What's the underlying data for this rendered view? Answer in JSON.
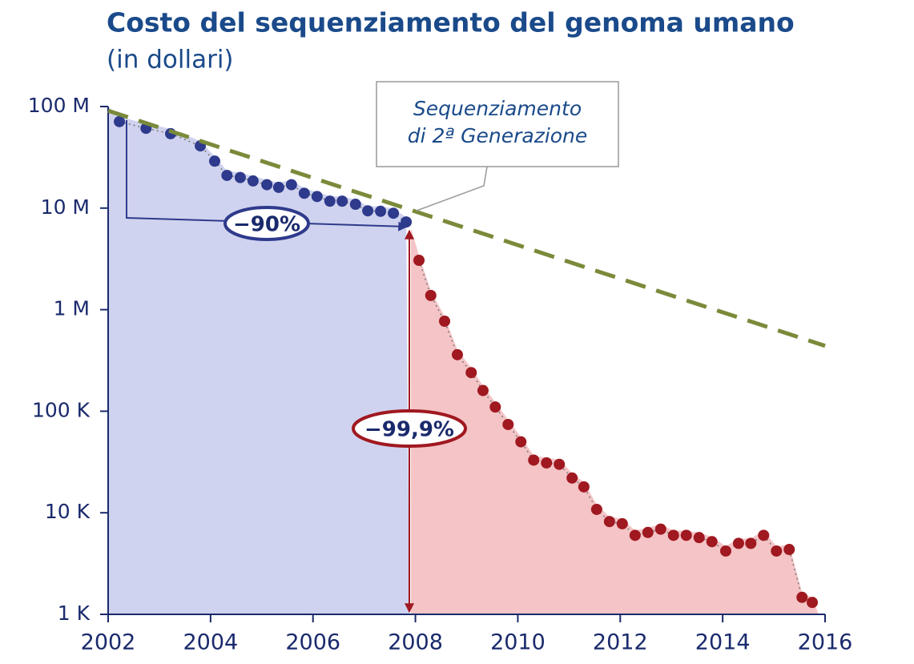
{
  "chart_data": {
    "type": "scatter",
    "title": "Costo del sequenziamento del genoma umano",
    "subtitle": "(in dollari)",
    "log_y": true,
    "xlim": [
      2002,
      2016
    ],
    "xticks": [
      2002,
      2004,
      2006,
      2008,
      2010,
      2012,
      2014,
      2016
    ],
    "ylim": [
      1000,
      100000000
    ],
    "yticks": [
      {
        "value": 1000,
        "label": "1 K"
      },
      {
        "value": 10000,
        "label": "10 K"
      },
      {
        "value": 100000,
        "label": "100 K"
      },
      {
        "value": 1000000,
        "label": "1 M"
      },
      {
        "value": 10000000,
        "label": "10 M"
      },
      {
        "value": 100000000,
        "label": "100 M"
      }
    ],
    "series": [
      {
        "color": "#2e3a8c",
        "area_color": "#d0d3ef",
        "x": [
          2002.22,
          2002.74,
          2003.22,
          2003.8,
          2004.08,
          2004.32,
          2004.58,
          2004.83,
          2005.1,
          2005.33,
          2005.58,
          2005.83,
          2006.08,
          2006.33,
          2006.57,
          2006.83,
          2007.07,
          2007.32,
          2007.57,
          2007.82
        ],
        "values": [
          71000000,
          61000000,
          54000000,
          41000000,
          29000000,
          21000000,
          20000000,
          18500000,
          17000000,
          16000000,
          17000000,
          14000000,
          13000000,
          11700000,
          11700000,
          10900000,
          9400000,
          9300000,
          8900000,
          7300000
        ]
      },
      {
        "color": "#a01820",
        "area_color": "#f4c4c6",
        "x": [
          2008.07,
          2008.3,
          2008.57,
          2008.82,
          2009.09,
          2009.32,
          2009.56,
          2009.81,
          2010.06,
          2010.31,
          2010.56,
          2010.81,
          2011.06,
          2011.29,
          2011.54,
          2011.79,
          2012.04,
          2012.29,
          2012.54,
          2012.79,
          2013.04,
          2013.29,
          2013.54,
          2013.79,
          2014.06,
          2014.31,
          2014.55,
          2014.8,
          2015.05,
          2015.3,
          2015.55,
          2015.75
        ],
        "values": [
          3060000,
          1380000,
          770000,
          360000,
          240000,
          160000,
          110000,
          74000,
          50000,
          33000,
          31000,
          30000,
          22000,
          18000,
          10800,
          8200,
          7800,
          6000,
          6400,
          6900,
          6000,
          6000,
          5700,
          5200,
          4200,
          5000,
          5000,
          6000,
          4200,
          4350,
          1470,
          1310
        ]
      },
      {
        "type": "line",
        "style": "dashed",
        "color": "#7a8a3a",
        "x": [
          2002,
          2016
        ],
        "values": [
          91000000,
          440000
        ]
      }
    ],
    "annotations": {
      "callout": [
        "Sequenziamento",
        "di 2ª Generazione"
      ],
      "drop_first": "−90%",
      "drop_second": "−99,9%"
    }
  }
}
